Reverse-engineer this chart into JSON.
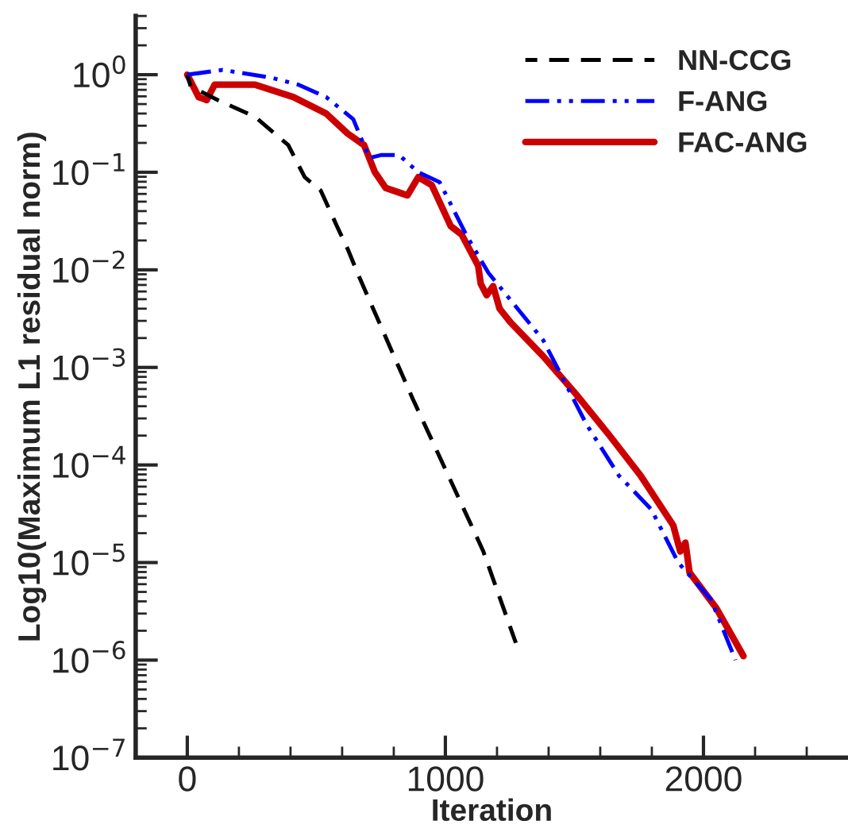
{
  "chart_data": {
    "type": "line",
    "xlabel": "Iteration",
    "ylabel": "Log10(Maximum L1 residual norm)",
    "log": "y",
    "xlim": [
      -200,
      2560
    ],
    "xticks": [
      0,
      1000,
      2000
    ],
    "ylim": [
      1e-07,
      4
    ],
    "yticks": [
      {
        "value": 1e-07,
        "label": "10$^{−7}$"
      },
      {
        "value": 1e-06,
        "label": "10$^{−6}$"
      },
      {
        "value": 1e-05,
        "label": "10$^{−5}$"
      },
      {
        "value": 0.0001,
        "label": "10$^{−4}$"
      },
      {
        "value": 0.001,
        "label": "10$^{−3}$"
      },
      {
        "value": 0.01,
        "label": "10$^{−2}$"
      },
      {
        "value": 0.1,
        "label": "10$^{−1}$"
      },
      {
        "value": 1,
        "label": "10$^{0}$"
      }
    ],
    "grid": false,
    "legend": "top right",
    "marker": "none",
    "series": [
      {
        "name": "NN-CCG",
        "color": "#000000",
        "line_style": "dashed",
        "x": [
          0,
          13,
          118,
          263,
          391,
          455,
          517,
          580,
          623,
          664,
          873,
          1127,
          1147,
          1273
        ],
        "values": [
          1.0,
          0.76,
          0.55,
          0.37,
          0.19,
          0.089,
          0.065,
          0.028,
          0.016,
          0.0087,
          0.00048,
          1.7e-05,
          1.3e-05,
          1.5e-06
        ]
      },
      {
        "name": "F-ANG",
        "color": "#0000ff",
        "line_style": "dashdot",
        "x": [
          0,
          137,
          326,
          431,
          538,
          643,
          705,
          750,
          821,
          895,
          978,
          1084,
          1167,
          1379,
          1547,
          1672,
          1798,
          1902,
          2029,
          2124
        ],
        "values": [
          1.0,
          1.12,
          0.93,
          0.79,
          0.59,
          0.35,
          0.14,
          0.15,
          0.15,
          0.1,
          0.079,
          0.022,
          0.0093,
          0.0019,
          0.00026,
          7.8e-05,
          3.5e-05,
          1e-05,
          4.2e-06,
          1e-06
        ]
      },
      {
        "name": "FAC-ANG",
        "color": "#cc0000",
        "line_style": "solid",
        "x": [
          0,
          44,
          75,
          106,
          263,
          411,
          538,
          621,
          685,
          727,
          769,
          853,
          895,
          947,
          1021,
          1063,
          1127,
          1137,
          1160,
          1185,
          1210,
          1252,
          1379,
          1504,
          1630,
          1756,
          1883,
          1910,
          1930,
          1946,
          2050,
          2155
        ],
        "values": [
          1.0,
          0.59,
          0.55,
          0.79,
          0.79,
          0.59,
          0.4,
          0.25,
          0.19,
          0.1,
          0.069,
          0.058,
          0.089,
          0.074,
          0.028,
          0.023,
          0.011,
          0.0072,
          0.0055,
          0.0068,
          0.004,
          0.0029,
          0.0013,
          0.00054,
          0.00021,
          7.8e-05,
          2.4e-05,
          1.3e-05,
          1.6e-05,
          7.9e-06,
          3.4e-06,
          1.1e-06
        ]
      }
    ]
  }
}
